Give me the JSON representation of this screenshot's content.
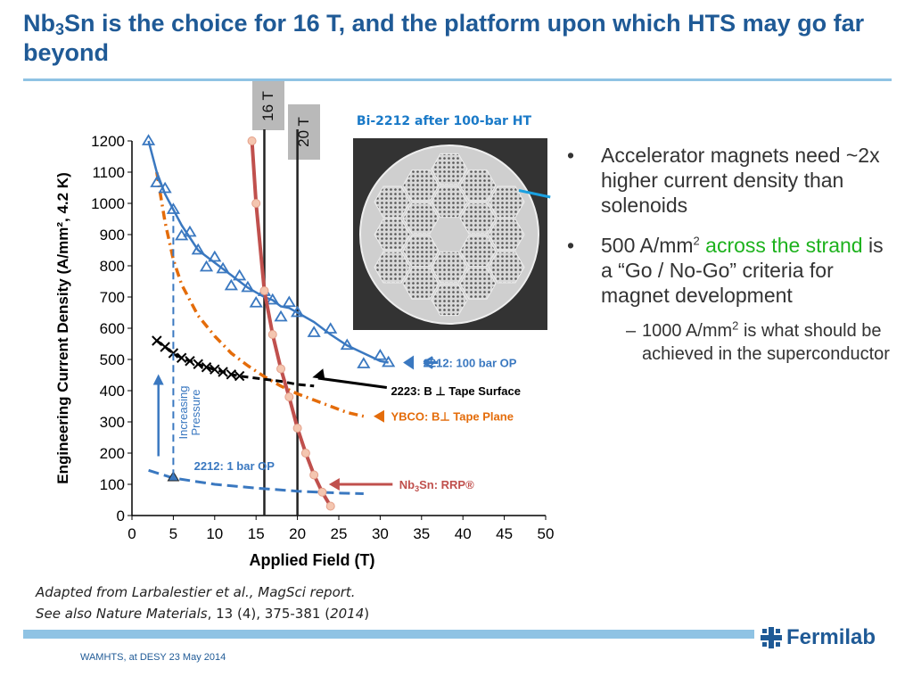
{
  "slide": {
    "title_prefix": "Nb",
    "title_sub": "3",
    "title_rest": "Sn is the choice for 16 T, and the platform upon which HTS may go far beyond",
    "tag_16": "16 T",
    "tag_20": "20 T",
    "micro_caption": "Bi-2212 after 100-bar HT",
    "bullets": [
      {
        "text": "Accelerator magnets need ~2x higher current density than solenoids"
      },
      {
        "pre": "500 A/mm",
        "sup": "2",
        "green": "across the strand",
        "post": " is a “Go / No-Go” criteria for magnet development"
      }
    ],
    "sub_bullet": {
      "pre": "1000 A/mm",
      "sup": "2",
      "post": " is what should be achieved in the superconductor"
    },
    "bullet_dot": "•",
    "sub_dash": "–",
    "citation_line1": "Adapted from Larbalestier et al., MagSci report.",
    "citation_line2_italic": "See also Nature Materials",
    "citation_line2_mid": ", 13 (4), 375-381 (",
    "citation_line2_year": "2014",
    "citation_line2_end": ")",
    "footer": "WAMHTS, at DESY 23 May 2014",
    "logo_text": "Fermilab",
    "logo_icon": "fermilab-snowflake-icon",
    "colors": {
      "title": "#1f5a96",
      "rule": "#8fc3e4",
      "green": "#1db21d",
      "bi2212": "#3a78c0",
      "nb3sn": "#c0504d",
      "ybco": "#e46c0a",
      "bi2223": "#000000",
      "grey_tag": "#b9b9b9"
    }
  },
  "chart_data": {
    "type": "line",
    "xlabel": "Applied Field (T)",
    "ylabel": "Engineering Current Density (A/mm², 4.2 K)",
    "xlim": [
      0,
      50
    ],
    "ylim": [
      0,
      1200
    ],
    "xticks": [
      0,
      5,
      10,
      15,
      20,
      25,
      30,
      35,
      40,
      45,
      50
    ],
    "yticks": [
      0,
      100,
      200,
      300,
      400,
      500,
      600,
      700,
      800,
      900,
      1000,
      1100,
      1200
    ],
    "grid": false,
    "vertical_lines": [
      16,
      20
    ],
    "series": [
      {
        "name": "2212: 100 bar OP",
        "marker": "triangle",
        "x": [
          2,
          3,
          4,
          5,
          6,
          7,
          8,
          9,
          10,
          11,
          12,
          13,
          14,
          15,
          16,
          17,
          18,
          19,
          20,
          22,
          24,
          26,
          28,
          30,
          31
        ],
        "y": [
          1200,
          1100,
          1030,
          980,
          930,
          890,
          850,
          830,
          810,
          790,
          770,
          750,
          730,
          715,
          700,
          690,
          670,
          665,
          650,
          620,
          580,
          545,
          520,
          495,
          490
        ]
      },
      {
        "name": "Nb3Sn: RRP®",
        "marker": "circle",
        "x": [
          14.5,
          15,
          16,
          17,
          18,
          19,
          20,
          21,
          22,
          23,
          24
        ],
        "y": [
          1200,
          1000,
          720,
          580,
          470,
          380,
          280,
          200,
          130,
          75,
          30
        ]
      },
      {
        "name": "2223: B ⊥ Tape Surface",
        "marker": "x",
        "x": [
          3,
          4,
          5,
          6,
          7,
          8,
          9,
          10,
          11,
          12,
          13,
          15,
          18,
          20,
          22
        ],
        "y": [
          560,
          540,
          520,
          505,
          495,
          485,
          475,
          468,
          460,
          452,
          447,
          440,
          430,
          420,
          415
        ]
      },
      {
        "name": "YBCO: B⊥ Tape Plane",
        "marker": "none",
        "x": [
          3,
          4,
          5,
          6,
          8,
          10,
          12,
          14,
          16,
          18,
          20,
          22,
          24,
          26,
          28
        ],
        "y": [
          1100,
          940,
          820,
          740,
          640,
          575,
          520,
          480,
          445,
          415,
          390,
          370,
          350,
          330,
          318
        ]
      },
      {
        "name": "2212: 1 bar OP",
        "marker": "none",
        "x": [
          2,
          5,
          10,
          15,
          20,
          25,
          28
        ],
        "y": [
          145,
          120,
          100,
          88,
          78,
          72,
          70
        ]
      }
    ],
    "annotations": {
      "arrow_label": "Increasing Pressure",
      "label_2212_100": "2212: 100 bar OP",
      "label_2223": "2223: B ⊥ Tape Surface",
      "label_ybco": "YBCO: B⊥ Tape Plane",
      "label_2212_1": "2212: 1 bar OP",
      "label_nb3sn_pre": "Nb",
      "label_nb3sn_sub": "3",
      "label_nb3sn_post": "Sn: RRP®"
    }
  }
}
